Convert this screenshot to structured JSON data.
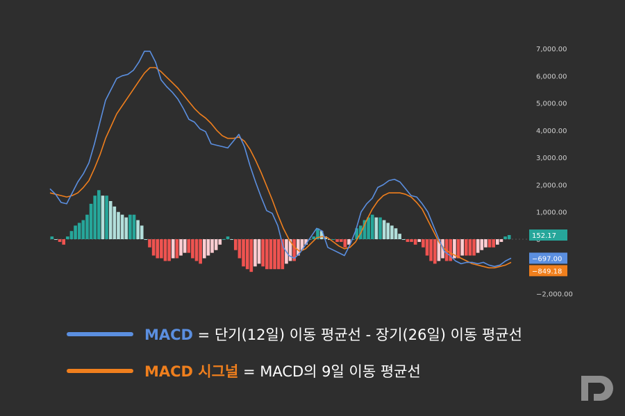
{
  "chart_data": {
    "type": "line",
    "y_ticks": [
      7000,
      6000,
      5000,
      4000,
      3000,
      2000,
      1000,
      0,
      -2000
    ],
    "y_tick_labels": [
      "7,000.00",
      "6,000.00",
      "5,000.00",
      "4,000.00",
      "3,000.00",
      "2,000.00",
      "1,000.00",
      "0",
      "−2,000.00"
    ],
    "ylim": [
      -2000,
      7000
    ],
    "grid": false,
    "series": [
      {
        "name": "MACD",
        "color": "#5b8fe0",
        "values": [
          1850,
          1650,
          1350,
          1300,
          1700,
          2100,
          2400,
          2800,
          3500,
          4300,
          5100,
          5500,
          5900,
          6000,
          6050,
          6200,
          6500,
          6900,
          6900,
          6500,
          5850,
          5600,
          5400,
          5150,
          4800,
          4400,
          4300,
          4050,
          3950,
          3500,
          3450,
          3400,
          3350,
          3600,
          3850,
          3400,
          2700,
          2100,
          1550,
          1050,
          950,
          500,
          -300,
          -600,
          -700,
          -500,
          -200,
          100,
          400,
          300,
          -300,
          -400,
          -500,
          -600,
          -200,
          300,
          1000,
          1300,
          1500,
          1900,
          2000,
          2150,
          2200,
          2100,
          1850,
          1600,
          1550,
          1300,
          1000,
          500,
          0,
          -450,
          -600,
          -800,
          -900,
          -850,
          -850,
          -900,
          -850,
          -950,
          -1000,
          -950,
          -800,
          -697
        ]
      },
      {
        "name": "MACD 시그널",
        "color": "#f07f1d",
        "values": [
          1700,
          1650,
          1600,
          1550,
          1600,
          1700,
          1900,
          2150,
          2600,
          3100,
          3700,
          4150,
          4600,
          4900,
          5200,
          5500,
          5800,
          6100,
          6300,
          6300,
          6150,
          5950,
          5750,
          5550,
          5300,
          5050,
          4800,
          4600,
          4450,
          4250,
          4000,
          3800,
          3700,
          3700,
          3750,
          3600,
          3300,
          2900,
          2450,
          1950,
          1450,
          900,
          400,
          0,
          -300,
          -450,
          -350,
          -150,
          50,
          100,
          50,
          -100,
          -250,
          -350,
          -300,
          -100,
          250,
          700,
          1100,
          1400,
          1600,
          1700,
          1700,
          1700,
          1650,
          1550,
          1350,
          1100,
          700,
          300,
          -100,
          -350,
          -500,
          -600,
          -700,
          -800,
          -900,
          -950,
          -1000,
          -1050,
          -1050,
          -1000,
          -950,
          -849.18
        ]
      },
      {
        "name": "Histogram",
        "positive_color": "#26a69a",
        "positive_fading_color": "#b2dfdb",
        "negative_color": "#ef5350",
        "negative_fading_color": "#ffcdd2",
        "values": [
          100,
          0,
          -100,
          -200,
          100,
          300,
          500,
          600,
          700,
          900,
          1300,
          1600,
          1800,
          1600,
          1600,
          1400,
          1200,
          1000,
          900,
          800,
          900,
          900,
          700,
          500,
          0,
          -300,
          -600,
          -700,
          -700,
          -800,
          -800,
          -700,
          -700,
          -600,
          -500,
          -500,
          -700,
          -800,
          -900,
          -700,
          -600,
          -500,
          -400,
          -200,
          0,
          100,
          0,
          -400,
          -700,
          -1000,
          -1100,
          -1200,
          -1000,
          -900,
          -1000,
          -1100,
          -1100,
          -1100,
          -1100,
          -1100,
          -900,
          -800,
          -800,
          -600,
          -400,
          -200,
          0,
          100,
          400,
          300,
          100,
          0,
          0,
          -100,
          -100,
          -300,
          -200,
          0,
          400,
          500,
          700,
          800,
          900,
          800,
          800,
          700,
          600,
          500,
          400,
          200,
          0,
          -100,
          -100,
          -200,
          -100,
          -300,
          -600,
          -800,
          -900,
          -800,
          -700,
          -800,
          -800,
          -700,
          -700,
          -600,
          -600,
          -600,
          -600,
          -500,
          -400,
          -300,
          -300,
          -300,
          -200,
          -100,
          100,
          152.17
        ]
      }
    ],
    "price_tags": [
      {
        "label": "152.17",
        "value": 152.17,
        "bg": "#26a69a",
        "fg": "#ffffff"
      },
      {
        "label": "−697.00",
        "value": -697,
        "bg": "#5b8fe0",
        "fg": "#ffffff"
      },
      {
        "label": "−849.18",
        "value": -849.18,
        "bg": "#f07f1d",
        "fg": "#ffffff"
      }
    ]
  },
  "legend": {
    "macd": {
      "name": "MACD",
      "rest": " = 단기(12일) 이동 평균선 - 장기(26일) 이동 평균선",
      "color": "#5b8fe0"
    },
    "signal": {
      "name": "MACD 시그널",
      "rest": " = MACD의 9일 이동 평균선",
      "color": "#f07f1d"
    }
  },
  "logo": {
    "name": "td-logo-icon",
    "color": "#8c8c8c"
  }
}
